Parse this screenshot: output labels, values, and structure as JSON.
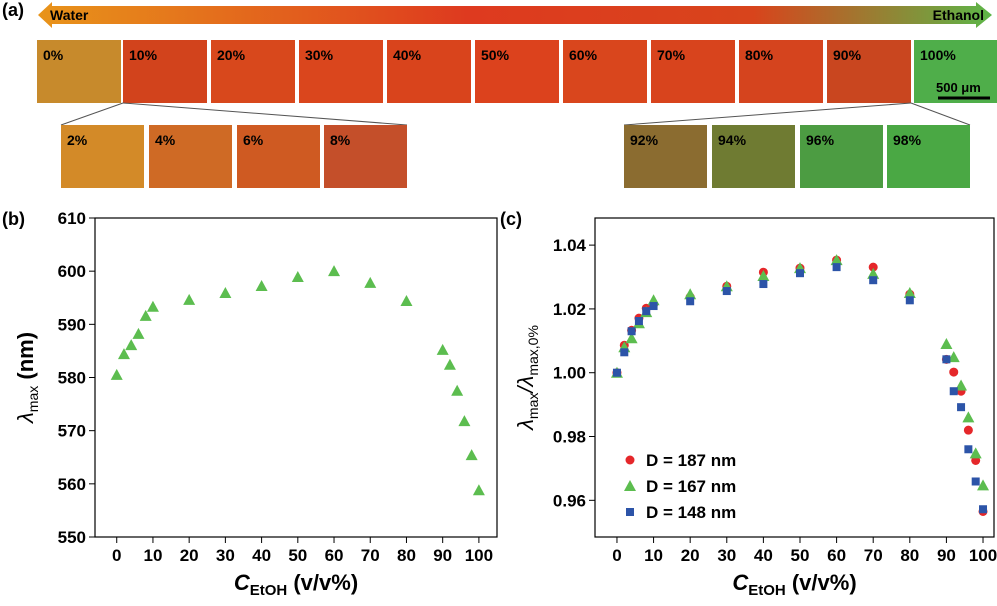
{
  "panel_a": {
    "label": "(a)",
    "arrow_left": "Water",
    "arrow_right": "Ethanol",
    "scale_bar": "500 μm",
    "top_row": [
      "0%",
      "10%",
      "20%",
      "30%",
      "40%",
      "50%",
      "60%",
      "70%",
      "80%",
      "90%",
      "100%"
    ],
    "inset_left": [
      "2%",
      "4%",
      "6%",
      "8%"
    ],
    "inset_right": [
      "92%",
      "94%",
      "96%",
      "98%"
    ]
  },
  "chart_data": [
    {
      "type": "scatter",
      "panel_label": "(b)",
      "xlabel": [
        "C",
        "EtOH",
        " (v/v%)"
      ],
      "ylabel": [
        "λ",
        "max",
        " (nm)"
      ],
      "x": [
        0,
        2,
        4,
        6,
        8,
        10,
        20,
        30,
        40,
        50,
        60,
        70,
        80,
        90,
        92,
        94,
        96,
        98,
        100
      ],
      "series": [
        {
          "color": "#5cbd4f",
          "marker": "triangle",
          "values": [
            580.5,
            584.4,
            586.1,
            588.2,
            591.6,
            593.3,
            594.6,
            595.9,
            597.2,
            598.9,
            600.0,
            597.8,
            594.4,
            585.2,
            582.4,
            577.5,
            571.8,
            565.4,
            558.8
          ]
        }
      ],
      "xlim": [
        -6,
        105
      ],
      "xticks": [
        0,
        10,
        20,
        30,
        40,
        50,
        60,
        70,
        80,
        90,
        100
      ],
      "ylim": [
        550,
        610
      ],
      "yticks": [
        550,
        560,
        570,
        580,
        590,
        600,
        610
      ]
    },
    {
      "type": "scatter",
      "panel_label": "(c)",
      "xlabel": [
        "C",
        "EtOH",
        " (v/v%)"
      ],
      "ylabel": [
        "λ",
        "max",
        "/λ",
        "max,0%"
      ],
      "x": [
        0,
        2,
        4,
        6,
        8,
        10,
        20,
        30,
        40,
        50,
        60,
        70,
        80,
        90,
        92,
        94,
        96,
        98,
        100
      ],
      "series": [
        {
          "name": "D = 187 nm",
          "color": "#e5272a",
          "marker": "circle",
          "values": [
            1.0,
            1.0086,
            1.0133,
            1.0171,
            1.0202,
            1.0215,
            1.0237,
            1.0271,
            1.0315,
            1.0328,
            1.0353,
            1.0331,
            1.0246,
            1.0042,
            1.0002,
            0.9942,
            0.982,
            0.9725,
            0.9565
          ]
        },
        {
          "name": "D = 167 nm",
          "color": "#5cbd4f",
          "marker": "triangle",
          "values": [
            1.0,
            1.008,
            1.0108,
            1.0155,
            1.019,
            1.0227,
            1.0246,
            1.0271,
            1.0303,
            1.0328,
            1.0353,
            1.031,
            1.025,
            1.009,
            1.0049,
            0.996,
            0.986,
            0.9747,
            0.9647
          ]
        },
        {
          "name": "D = 148 nm",
          "color": "#2c54a8",
          "marker": "square",
          "values": [
            1.0,
            1.0064,
            1.013,
            1.0162,
            1.0193,
            1.0209,
            1.0224,
            1.0256,
            1.0278,
            1.0312,
            1.0331,
            1.029,
            1.0227,
            1.0042,
            0.9942,
            0.9892,
            0.976,
            0.9659,
            0.9572
          ]
        }
      ],
      "xlim": [
        -6,
        103
      ],
      "xticks": [
        0,
        10,
        20,
        30,
        40,
        50,
        60,
        70,
        80,
        90,
        100
      ],
      "ylim": [
        0.9485,
        1.0485
      ],
      "yticks": [
        0.96,
        0.98,
        {
          "value": 1,
          "label": "1.00"
        },
        1.02,
        1.04
      ],
      "legend": "lower left"
    }
  ]
}
